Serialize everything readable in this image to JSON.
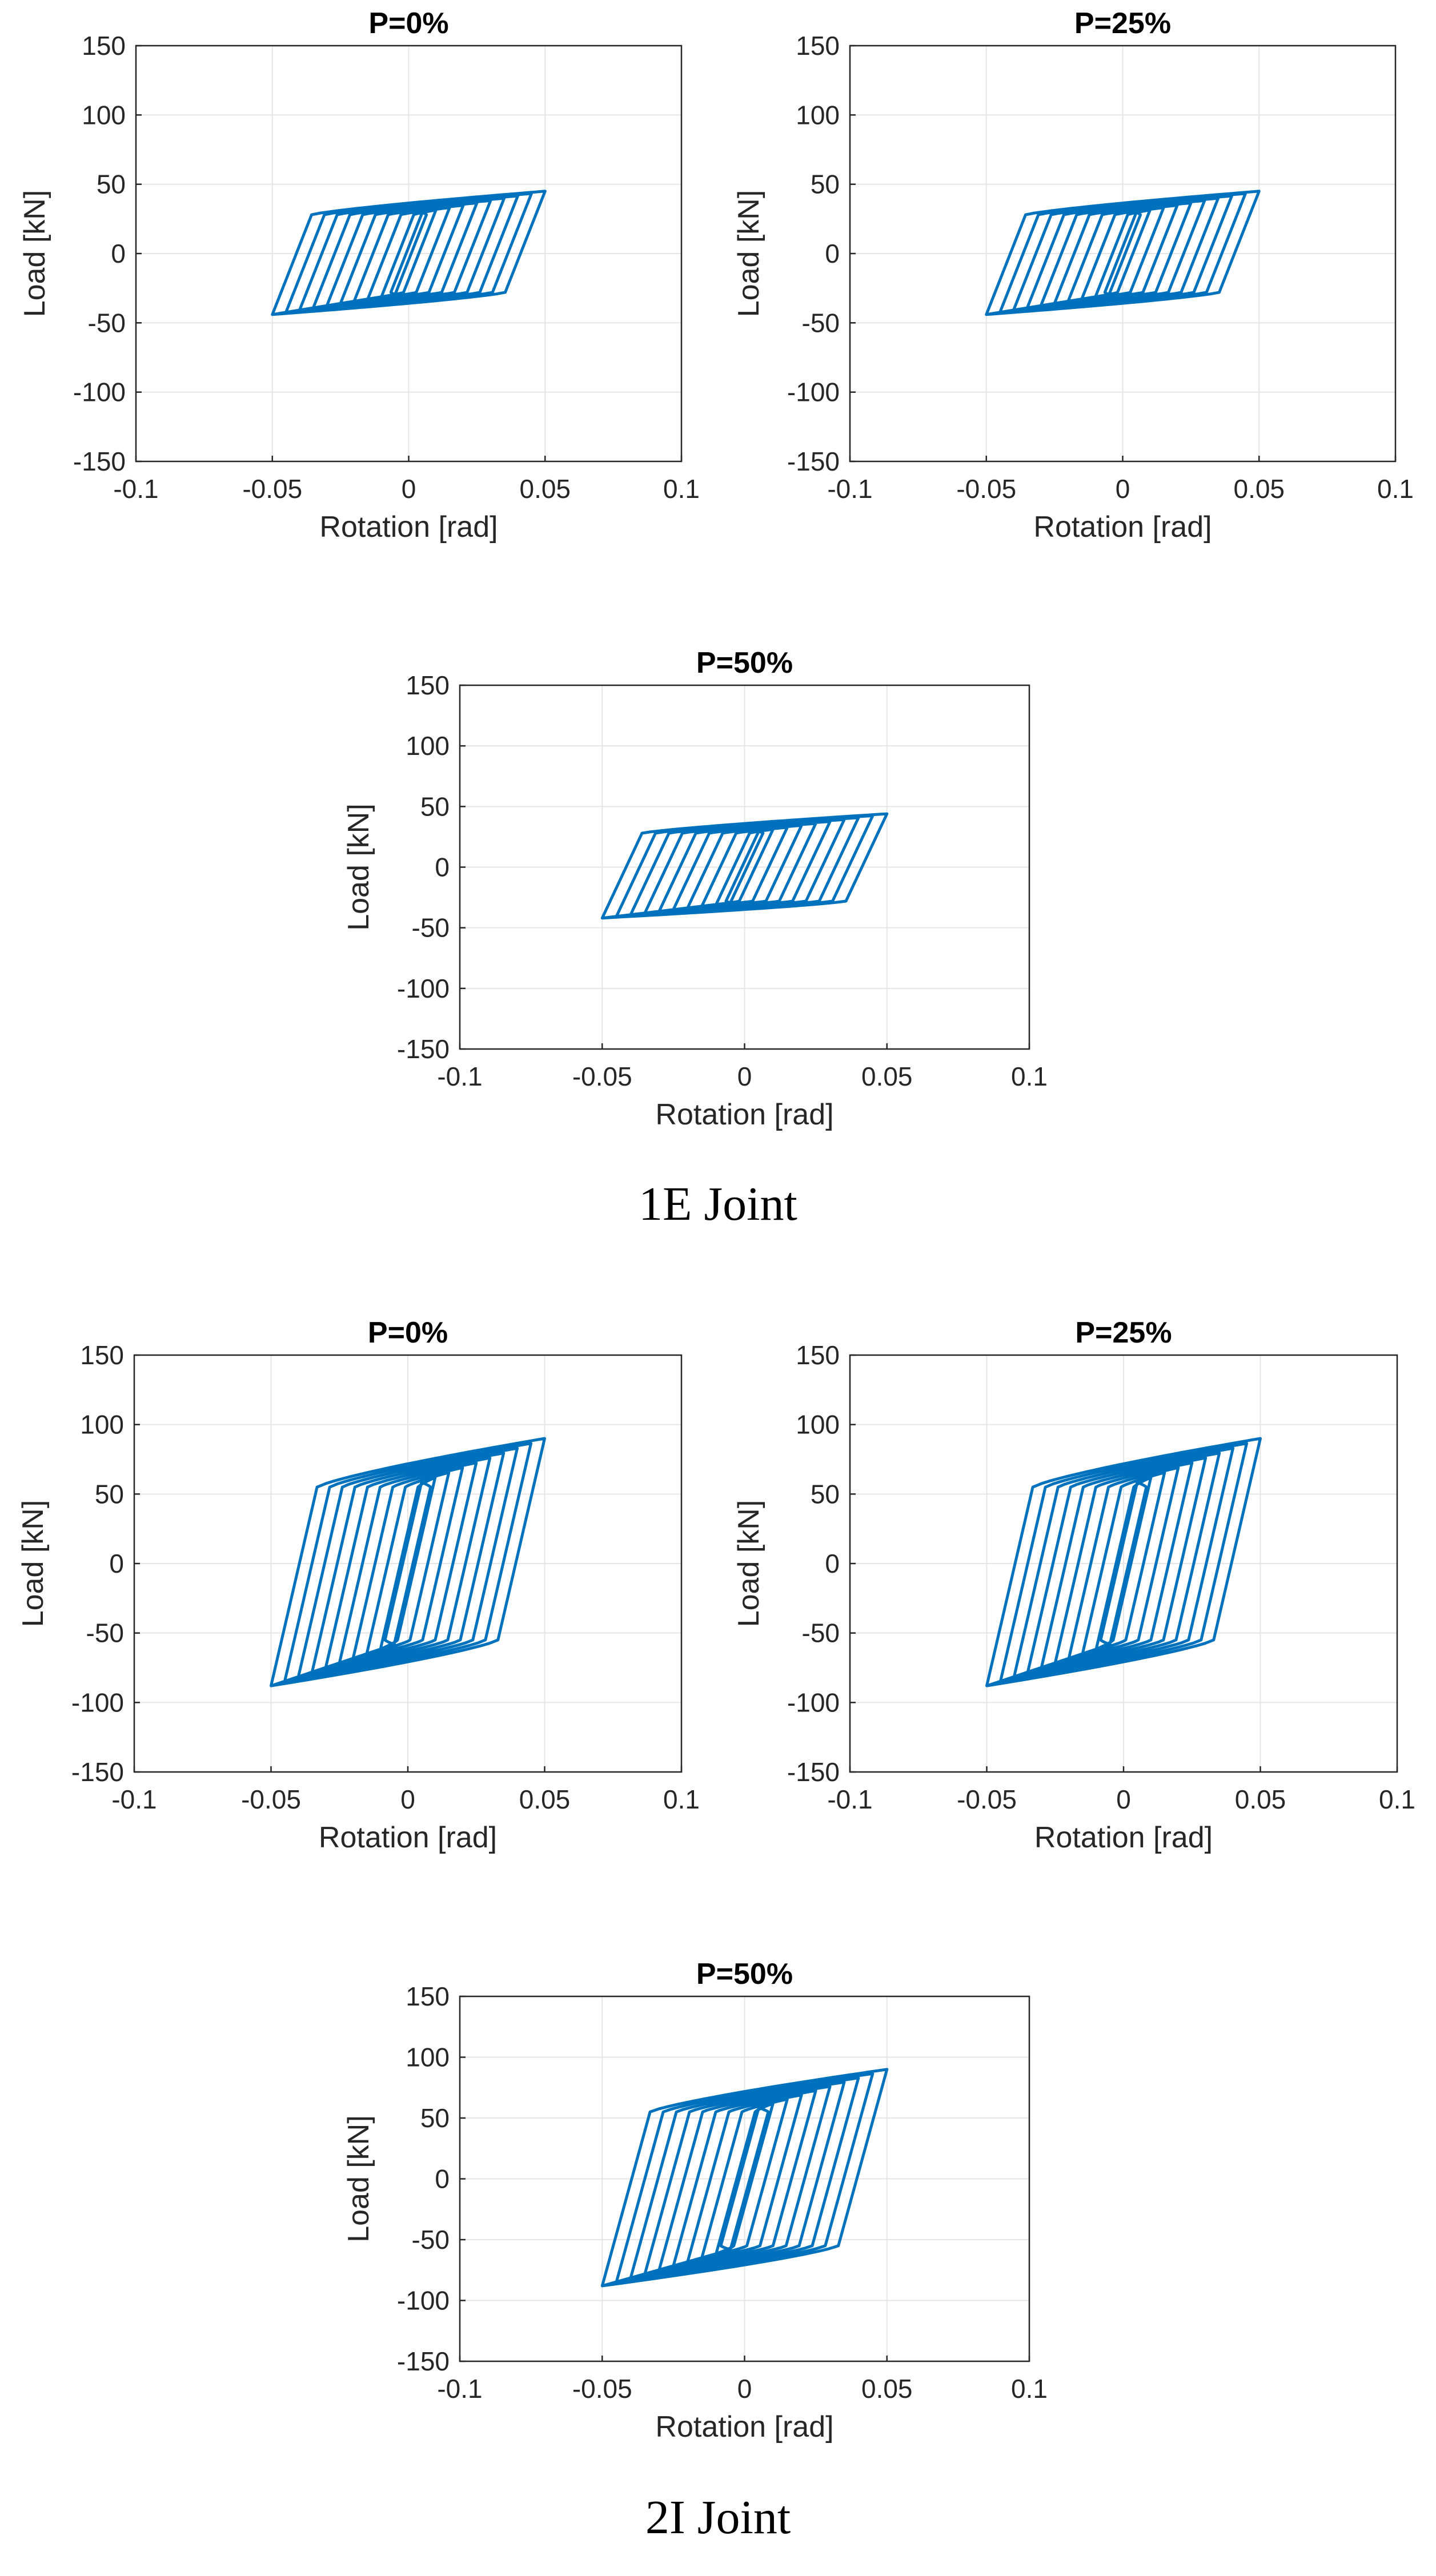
{
  "captions": {
    "group1": "1E Joint",
    "group2": "2I Joint"
  },
  "colors": {
    "series": "#0072BD",
    "grid": "#e6e6e6",
    "axis": "#262626"
  },
  "chart_data": [
    {
      "group": "1E Joint",
      "type": "line",
      "title": "P=0%",
      "xlabel": "Rotation [rad]",
      "ylabel": "Load [kN]",
      "xlim": [
        -0.1,
        0.1
      ],
      "ylim": [
        -150,
        150
      ],
      "xticks": [
        -0.1,
        -0.05,
        0,
        0.05,
        0.1
      ],
      "xtick_labels": [
        "-0.1",
        "-0.05",
        "0",
        "0.05",
        "0.1"
      ],
      "yticks": [
        -150,
        -100,
        -50,
        0,
        50,
        100,
        150
      ],
      "ytick_labels": [
        "-150",
        "-100",
        "-50",
        "0",
        "50",
        "100",
        "150"
      ],
      "grid": true,
      "series": [
        {
          "name": "hysteresis",
          "amplitudes": [
            0.005,
            0.01,
            0.015,
            0.02,
            0.025,
            0.03,
            0.035,
            0.04,
            0.045,
            0.05
          ],
          "yield_load": 28,
          "max_load": 45,
          "min_load": -44,
          "initial_stiffness": 5000
        }
      ]
    },
    {
      "group": "1E Joint",
      "type": "line",
      "title": "P=25%",
      "xlabel": "Rotation [rad]",
      "ylabel": "Load [kN]",
      "xlim": [
        -0.1,
        0.1
      ],
      "ylim": [
        -150,
        150
      ],
      "xticks": [
        -0.1,
        -0.05,
        0,
        0.05,
        0.1
      ],
      "xtick_labels": [
        "-0.1",
        "-0.05",
        "0",
        "0.05",
        "0.1"
      ],
      "yticks": [
        -150,
        -100,
        -50,
        0,
        50,
        100,
        150
      ],
      "ytick_labels": [
        "-150",
        "-100",
        "-50",
        "0",
        "50",
        "100",
        "150"
      ],
      "grid": true,
      "series": [
        {
          "name": "hysteresis",
          "amplitudes": [
            0.005,
            0.01,
            0.015,
            0.02,
            0.025,
            0.03,
            0.035,
            0.04,
            0.045,
            0.05
          ],
          "yield_load": 28,
          "max_load": 45,
          "min_load": -44,
          "initial_stiffness": 5000
        }
      ]
    },
    {
      "group": "1E Joint",
      "type": "line",
      "title": "P=50%",
      "xlabel": "Rotation [rad]",
      "ylabel": "Load [kN]",
      "xlim": [
        -0.1,
        0.1
      ],
      "ylim": [
        -150,
        150
      ],
      "xticks": [
        -0.1,
        -0.05,
        0,
        0.05,
        0.1
      ],
      "xtick_labels": [
        "-0.1",
        "-0.05",
        "0",
        "0.05",
        "0.1"
      ],
      "yticks": [
        -150,
        -100,
        -50,
        0,
        50,
        100,
        150
      ],
      "ytick_labels": [
        "-150",
        "-100",
        "-50",
        "0",
        "50",
        "100",
        "150"
      ],
      "grid": true,
      "series": [
        {
          "name": "hysteresis",
          "amplitudes": [
            0.005,
            0.01,
            0.015,
            0.02,
            0.025,
            0.03,
            0.035,
            0.04,
            0.045,
            0.05
          ],
          "yield_load": 28,
          "max_load": 44,
          "min_load": -42,
          "initial_stiffness": 5000
        }
      ]
    },
    {
      "group": "2I Joint",
      "type": "line",
      "title": "P=0%",
      "xlabel": "Rotation [rad]",
      "ylabel": "Load [kN]",
      "xlim": [
        -0.1,
        0.1
      ],
      "ylim": [
        -150,
        150
      ],
      "xticks": [
        -0.1,
        -0.05,
        0,
        0.05,
        0.1
      ],
      "xtick_labels": [
        "-0.1",
        "-0.05",
        "0",
        "0.05",
        "0.1"
      ],
      "yticks": [
        -150,
        -100,
        -50,
        0,
        50,
        100,
        150
      ],
      "ytick_labels": [
        "-150",
        "-100",
        "-50",
        "0",
        "50",
        "100",
        "150"
      ],
      "grid": true,
      "series": [
        {
          "name": "hysteresis",
          "amplitudes": [
            0.005,
            0.01,
            0.015,
            0.02,
            0.025,
            0.03,
            0.035,
            0.04,
            0.045,
            0.05
          ],
          "yield_load": 55,
          "max_load": 90,
          "min_load": -88,
          "initial_stiffness": 8500
        }
      ]
    },
    {
      "group": "2I Joint",
      "type": "line",
      "title": "P=25%",
      "xlabel": "Rotation [rad]",
      "ylabel": "Load [kN]",
      "xlim": [
        -0.1,
        0.1
      ],
      "ylim": [
        -150,
        150
      ],
      "xticks": [
        -0.1,
        -0.05,
        0,
        0.05,
        0.1
      ],
      "xtick_labels": [
        "-0.1",
        "-0.05",
        "0",
        "0.05",
        "0.1"
      ],
      "yticks": [
        -150,
        -100,
        -50,
        0,
        50,
        100,
        150
      ],
      "ytick_labels": [
        "-150",
        "-100",
        "-50",
        "0",
        "50",
        "100",
        "150"
      ],
      "grid": true,
      "series": [
        {
          "name": "hysteresis",
          "amplitudes": [
            0.005,
            0.01,
            0.015,
            0.02,
            0.025,
            0.03,
            0.035,
            0.04,
            0.045,
            0.05
          ],
          "yield_load": 55,
          "max_load": 90,
          "min_load": -88,
          "initial_stiffness": 8500
        }
      ]
    },
    {
      "group": "2I Joint",
      "type": "line",
      "title": "P=50%",
      "xlabel": "Rotation [rad]",
      "ylabel": "Load [kN]",
      "xlim": [
        -0.1,
        0.1
      ],
      "ylim": [
        -150,
        150
      ],
      "xticks": [
        -0.1,
        -0.05,
        0,
        0.05,
        0.1
      ],
      "xtick_labels": [
        "-0.1",
        "-0.05",
        "0",
        "0.05",
        "0.1"
      ],
      "yticks": [
        -150,
        -100,
        -50,
        0,
        50,
        100,
        150
      ],
      "ytick_labels": [
        "-150",
        "-100",
        "-50",
        "0",
        "50",
        "100",
        "150"
      ],
      "grid": true,
      "series": [
        {
          "name": "hysteresis",
          "amplitudes": [
            0.005,
            0.01,
            0.015,
            0.02,
            0.025,
            0.03,
            0.035,
            0.04,
            0.045,
            0.05
          ],
          "yield_load": 55,
          "max_load": 90,
          "min_load": -88,
          "initial_stiffness": 8500
        }
      ]
    }
  ]
}
